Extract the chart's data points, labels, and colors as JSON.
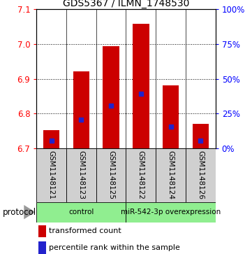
{
  "title": "GDS5367 / ILMN_1748530",
  "samples": [
    "GSM1148121",
    "GSM1148123",
    "GSM1148125",
    "GSM1148122",
    "GSM1148124",
    "GSM1148126"
  ],
  "bar_tops": [
    6.752,
    6.921,
    6.993,
    7.057,
    6.882,
    6.77
  ],
  "bar_bottom": 6.7,
  "blue_values": [
    6.722,
    6.782,
    6.823,
    6.856,
    6.762,
    6.723
  ],
  "ylim": [
    6.7,
    7.1
  ],
  "yticks_left": [
    6.7,
    6.8,
    6.9,
    7.0,
    7.1
  ],
  "yticks_right_pct": [
    0,
    25,
    50,
    75,
    100
  ],
  "yticks_right_vals": [
    6.7,
    6.8,
    6.9,
    7.0,
    7.1
  ],
  "bar_color": "#cc0000",
  "blue_color": "#2222cc",
  "group_colors": [
    "#90ee90",
    "#90ee90"
  ],
  "group_labels": [
    "control",
    "miR-542-3p overexpression"
  ],
  "group_split": 3,
  "legend_items": [
    {
      "color": "#cc0000",
      "label": "transformed count"
    },
    {
      "color": "#2222cc",
      "label": "percentile rank within the sample"
    }
  ],
  "bar_width": 0.55,
  "sample_box_color": "#d0d0d0",
  "figsize": [
    3.61,
    3.63
  ],
  "dpi": 100
}
